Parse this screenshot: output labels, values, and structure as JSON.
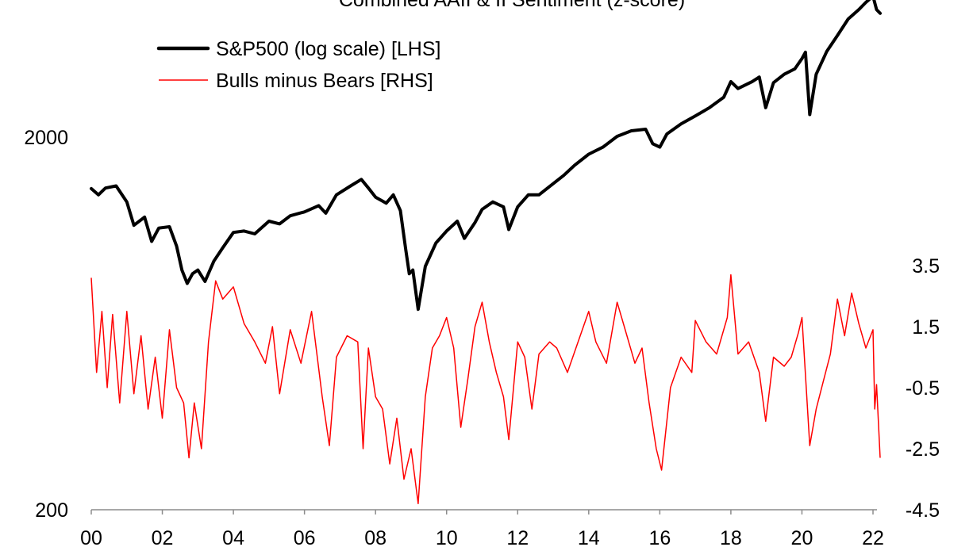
{
  "chart_data": {
    "type": "line",
    "title": "Combined AAII & II Sentiment (z-score)",
    "grid": false,
    "legend_position": "top-left",
    "x_tick_labels": [
      "00",
      "02",
      "04",
      "06",
      "08",
      "10",
      "12",
      "14",
      "16",
      "18",
      "20",
      "22"
    ],
    "x_ticks": [
      2000,
      2002,
      2004,
      2006,
      2008,
      2010,
      2012,
      2014,
      2016,
      2018,
      2020,
      2022
    ],
    "xlim": [
      2000,
      2022.2
    ],
    "left_axis": {
      "scale": "log",
      "ylim": [
        200,
        5500
      ],
      "tick_labels": [
        "200",
        "2000"
      ],
      "ticks": [
        200,
        2000
      ]
    },
    "right_axis": {
      "scale": "linear",
      "ylim": [
        -4.5,
        3.5
      ],
      "tick_labels": [
        "3.5",
        "1.5",
        "-0.5",
        "-2.5",
        "-4.5"
      ],
      "ticks": [
        3.5,
        1.5,
        -0.5,
        -2.5,
        -4.5
      ]
    },
    "series": [
      {
        "name": "S&P500 (log scale) [LHS]",
        "axis": "left",
        "color": "#000000",
        "points": [
          [
            2000.0,
            1455
          ],
          [
            2000.2,
            1400
          ],
          [
            2000.4,
            1460
          ],
          [
            2000.7,
            1480
          ],
          [
            2001.0,
            1340
          ],
          [
            2001.2,
            1160
          ],
          [
            2001.5,
            1220
          ],
          [
            2001.7,
            1050
          ],
          [
            2001.9,
            1140
          ],
          [
            2002.2,
            1150
          ],
          [
            2002.4,
            1020
          ],
          [
            2002.55,
            880
          ],
          [
            2002.7,
            810
          ],
          [
            2002.85,
            860
          ],
          [
            2003.0,
            880
          ],
          [
            2003.2,
            820
          ],
          [
            2003.45,
            930
          ],
          [
            2003.7,
            1010
          ],
          [
            2004.0,
            1110
          ],
          [
            2004.3,
            1120
          ],
          [
            2004.6,
            1100
          ],
          [
            2005.0,
            1190
          ],
          [
            2005.3,
            1170
          ],
          [
            2005.6,
            1230
          ],
          [
            2006.0,
            1260
          ],
          [
            2006.4,
            1310
          ],
          [
            2006.6,
            1250
          ],
          [
            2006.9,
            1400
          ],
          [
            2007.3,
            1480
          ],
          [
            2007.6,
            1540
          ],
          [
            2007.8,
            1460
          ],
          [
            2008.0,
            1380
          ],
          [
            2008.3,
            1330
          ],
          [
            2008.5,
            1400
          ],
          [
            2008.7,
            1270
          ],
          [
            2008.85,
            1000
          ],
          [
            2008.95,
            860
          ],
          [
            2009.05,
            880
          ],
          [
            2009.2,
            690
          ],
          [
            2009.4,
            900
          ],
          [
            2009.7,
            1040
          ],
          [
            2010.0,
            1120
          ],
          [
            2010.3,
            1190
          ],
          [
            2010.5,
            1070
          ],
          [
            2010.8,
            1180
          ],
          [
            2011.0,
            1280
          ],
          [
            2011.3,
            1340
          ],
          [
            2011.6,
            1300
          ],
          [
            2011.75,
            1130
          ],
          [
            2012.0,
            1300
          ],
          [
            2012.3,
            1400
          ],
          [
            2012.6,
            1400
          ],
          [
            2013.0,
            1500
          ],
          [
            2013.3,
            1580
          ],
          [
            2013.6,
            1680
          ],
          [
            2014.0,
            1800
          ],
          [
            2014.4,
            1880
          ],
          [
            2014.8,
            2010
          ],
          [
            2015.2,
            2080
          ],
          [
            2015.6,
            2100
          ],
          [
            2015.8,
            1920
          ],
          [
            2016.0,
            1880
          ],
          [
            2016.2,
            2040
          ],
          [
            2016.6,
            2170
          ],
          [
            2017.0,
            2280
          ],
          [
            2017.4,
            2400
          ],
          [
            2017.8,
            2560
          ],
          [
            2018.0,
            2820
          ],
          [
            2018.2,
            2700
          ],
          [
            2018.6,
            2820
          ],
          [
            2018.8,
            2900
          ],
          [
            2018.98,
            2400
          ],
          [
            2019.2,
            2800
          ],
          [
            2019.5,
            2950
          ],
          [
            2019.8,
            3050
          ],
          [
            2020.0,
            3250
          ],
          [
            2020.1,
            3380
          ],
          [
            2020.22,
            2300
          ],
          [
            2020.4,
            2950
          ],
          [
            2020.7,
            3400
          ],
          [
            2021.0,
            3750
          ],
          [
            2021.3,
            4150
          ],
          [
            2021.6,
            4400
          ],
          [
            2021.8,
            4600
          ],
          [
            2022.0,
            4780
          ],
          [
            2022.1,
            4400
          ],
          [
            2022.2,
            4300
          ]
        ]
      },
      {
        "name": "Bulls minus Bears [RHS]",
        "axis": "right",
        "color": "#ff0000",
        "points": [
          [
            2000.0,
            3.1
          ],
          [
            2000.15,
            0.0
          ],
          [
            2000.3,
            2.0
          ],
          [
            2000.45,
            -0.5
          ],
          [
            2000.6,
            1.9
          ],
          [
            2000.8,
            -1.0
          ],
          [
            2001.0,
            2.0
          ],
          [
            2001.2,
            -0.7
          ],
          [
            2001.4,
            1.2
          ],
          [
            2001.6,
            -1.2
          ],
          [
            2001.8,
            0.5
          ],
          [
            2002.0,
            -1.5
          ],
          [
            2002.2,
            1.4
          ],
          [
            2002.4,
            -0.5
          ],
          [
            2002.6,
            -1.0
          ],
          [
            2002.75,
            -2.8
          ],
          [
            2002.9,
            -1.0
          ],
          [
            2003.1,
            -2.5
          ],
          [
            2003.3,
            1.0
          ],
          [
            2003.5,
            3.0
          ],
          [
            2003.7,
            2.4
          ],
          [
            2004.0,
            2.8
          ],
          [
            2004.3,
            1.6
          ],
          [
            2004.6,
            1.0
          ],
          [
            2004.9,
            0.3
          ],
          [
            2005.1,
            1.5
          ],
          [
            2005.3,
            -0.7
          ],
          [
            2005.6,
            1.4
          ],
          [
            2005.9,
            0.3
          ],
          [
            2006.2,
            2.0
          ],
          [
            2006.5,
            -0.8
          ],
          [
            2006.7,
            -2.4
          ],
          [
            2006.9,
            0.5
          ],
          [
            2007.2,
            1.2
          ],
          [
            2007.5,
            1.0
          ],
          [
            2007.65,
            -2.5
          ],
          [
            2007.8,
            0.8
          ],
          [
            2008.0,
            -0.8
          ],
          [
            2008.2,
            -1.2
          ],
          [
            2008.4,
            -3.0
          ],
          [
            2008.6,
            -1.5
          ],
          [
            2008.8,
            -3.5
          ],
          [
            2009.0,
            -2.5
          ],
          [
            2009.2,
            -4.3
          ],
          [
            2009.4,
            -0.8
          ],
          [
            2009.6,
            0.8
          ],
          [
            2009.8,
            1.2
          ],
          [
            2010.0,
            1.8
          ],
          [
            2010.2,
            0.8
          ],
          [
            2010.4,
            -1.8
          ],
          [
            2010.6,
            -0.2
          ],
          [
            2010.8,
            1.5
          ],
          [
            2011.0,
            2.3
          ],
          [
            2011.2,
            1.0
          ],
          [
            2011.4,
            0.0
          ],
          [
            2011.6,
            -0.8
          ],
          [
            2011.75,
            -2.2
          ],
          [
            2012.0,
            1.0
          ],
          [
            2012.2,
            0.5
          ],
          [
            2012.4,
            -1.2
          ],
          [
            2012.6,
            0.6
          ],
          [
            2012.9,
            1.0
          ],
          [
            2013.1,
            0.8
          ],
          [
            2013.4,
            0.0
          ],
          [
            2013.7,
            1.0
          ],
          [
            2014.0,
            2.0
          ],
          [
            2014.2,
            1.0
          ],
          [
            2014.5,
            0.3
          ],
          [
            2014.8,
            2.3
          ],
          [
            2015.0,
            1.5
          ],
          [
            2015.3,
            0.3
          ],
          [
            2015.5,
            0.8
          ],
          [
            2015.7,
            -1.0
          ],
          [
            2015.9,
            -2.5
          ],
          [
            2016.05,
            -3.2
          ],
          [
            2016.3,
            -0.5
          ],
          [
            2016.6,
            0.5
          ],
          [
            2016.9,
            0.0
          ],
          [
            2017.0,
            1.7
          ],
          [
            2017.3,
            1.0
          ],
          [
            2017.6,
            0.6
          ],
          [
            2017.9,
            1.8
          ],
          [
            2018.0,
            3.2
          ],
          [
            2018.2,
            0.6
          ],
          [
            2018.5,
            1.0
          ],
          [
            2018.8,
            0.0
          ],
          [
            2018.98,
            -1.6
          ],
          [
            2019.2,
            0.5
          ],
          [
            2019.5,
            0.2
          ],
          [
            2019.7,
            0.5
          ],
          [
            2019.9,
            1.3
          ],
          [
            2020.0,
            1.8
          ],
          [
            2020.22,
            -2.4
          ],
          [
            2020.4,
            -1.2
          ],
          [
            2020.6,
            -0.3
          ],
          [
            2020.8,
            0.6
          ],
          [
            2021.0,
            2.4
          ],
          [
            2021.2,
            1.2
          ],
          [
            2021.4,
            2.6
          ],
          [
            2021.6,
            1.6
          ],
          [
            2021.8,
            0.8
          ],
          [
            2022.0,
            1.4
          ],
          [
            2022.05,
            -1.2
          ],
          [
            2022.1,
            -0.4
          ],
          [
            2022.2,
            -2.8
          ]
        ]
      }
    ]
  }
}
